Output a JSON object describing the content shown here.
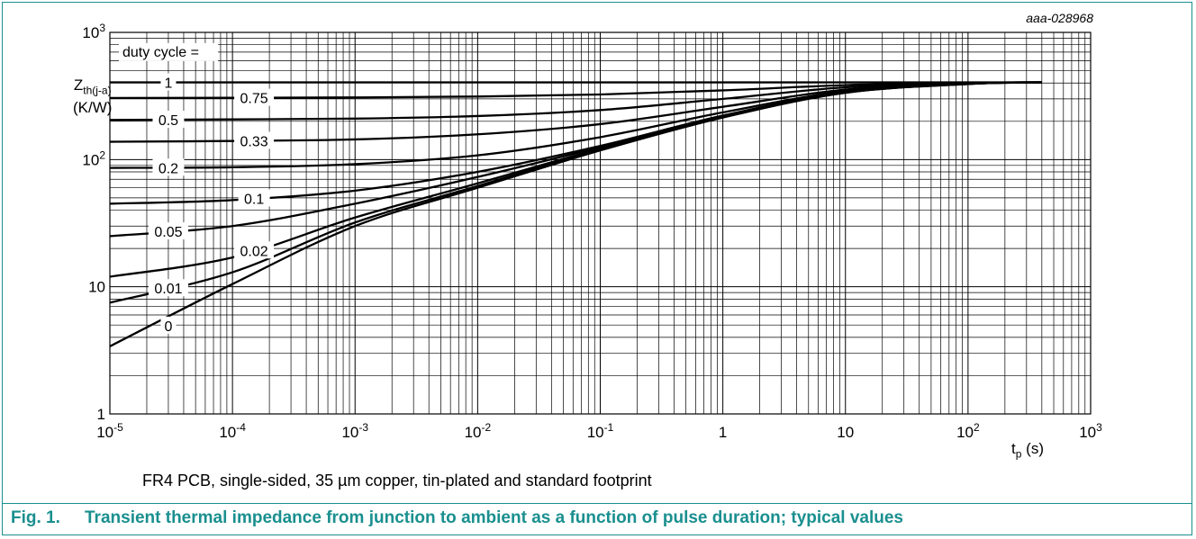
{
  "figure": {
    "code": "aaa-028968",
    "note": "FR4 PCB, single-sided, 35 µm copper, tin-plated and standard footprint",
    "caption_number": "Fig. 1.",
    "caption_text": "Transient thermal impedance from junction to ambient as a function of pulse duration; typical values",
    "y_axis": {
      "symbol": "Z",
      "subscript": "th(j-a)",
      "unit": "(K/W)"
    },
    "x_axis": {
      "symbol": "t",
      "subscript": "p",
      "unit": "(s)"
    }
  },
  "chart_data": {
    "type": "line",
    "xscale": "log",
    "yscale": "log",
    "xlim": [
      1e-05,
      1000
    ],
    "ylim": [
      1,
      1000
    ],
    "grid": true,
    "x_ticks": [
      {
        "base": "10",
        "exp": "-5"
      },
      {
        "base": "10",
        "exp": "-4"
      },
      {
        "base": "10",
        "exp": "-3"
      },
      {
        "base": "10",
        "exp": "-2"
      },
      {
        "base": "10",
        "exp": "-1"
      },
      {
        "base": "1",
        "exp": ""
      },
      {
        "base": "10",
        "exp": ""
      },
      {
        "base": "10",
        "exp": "2"
      },
      {
        "base": "10",
        "exp": "3"
      }
    ],
    "y_ticks": [
      {
        "value": 1,
        "base": "1",
        "exp": ""
      },
      {
        "value": 10,
        "base": "10",
        "exp": ""
      },
      {
        "value": 100,
        "base": "10",
        "exp": "2"
      },
      {
        "value": 1000,
        "base": "10",
        "exp": "3"
      }
    ],
    "legend_title": "duty cycle =",
    "series": [
      {
        "name": "1",
        "x": [
          1e-05,
          0.0001,
          0.001,
          0.01,
          0.1,
          1,
          10,
          100,
          400
        ],
        "y": [
          405,
          405,
          405,
          405,
          405,
          405,
          405,
          405,
          405
        ]
      },
      {
        "name": "0.75",
        "x": [
          1e-05,
          0.0001,
          0.001,
          0.01,
          0.1,
          1,
          10,
          100,
          400
        ],
        "y": [
          305,
          306,
          308,
          313,
          325,
          350,
          385,
          402,
          405
        ]
      },
      {
        "name": "0.5",
        "x": [
          1e-05,
          0.0001,
          0.001,
          0.01,
          0.1,
          1,
          10,
          100,
          400
        ],
        "y": [
          205,
          207,
          210,
          220,
          245,
          300,
          370,
          400,
          405
        ]
      },
      {
        "name": "0.33",
        "x": [
          1e-05,
          0.0001,
          0.001,
          0.01,
          0.1,
          1,
          10,
          100,
          400
        ],
        "y": [
          138,
          140,
          144,
          158,
          190,
          260,
          355,
          398,
          405
        ]
      },
      {
        "name": "0.2",
        "x": [
          1e-05,
          0.0001,
          0.001,
          0.01,
          0.1,
          1,
          10,
          100,
          400
        ],
        "y": [
          86,
          87,
          92,
          108,
          150,
          235,
          345,
          396,
          405
        ]
      },
      {
        "name": "0.1",
        "x": [
          1e-05,
          0.0001,
          0.001,
          0.01,
          0.1,
          1,
          10,
          100,
          400
        ],
        "y": [
          45,
          48,
          57,
          80,
          128,
          222,
          340,
          395,
          405
        ]
      },
      {
        "name": "0.05",
        "x": [
          1e-05,
          0.0001,
          0.001,
          0.01,
          0.1,
          1,
          10,
          100,
          400
        ],
        "y": [
          25,
          30,
          45,
          73,
          125,
          220,
          338,
          394,
          405
        ]
      },
      {
        "name": "0.02",
        "x": [
          1e-05,
          0.0001,
          0.001,
          0.01,
          0.1,
          1,
          10,
          100,
          400
        ],
        "y": [
          12,
          17,
          35,
          65,
          122,
          218,
          337,
          394,
          405
        ]
      },
      {
        "name": "0.01",
        "x": [
          1e-05,
          0.0001,
          0.001,
          0.01,
          0.1,
          1,
          10,
          100,
          400
        ],
        "y": [
          7.5,
          13,
          32,
          62,
          120,
          216,
          336,
          393,
          405
        ]
      },
      {
        "name": "0",
        "x": [
          1e-05,
          0.0001,
          0.001,
          0.01,
          0.1,
          1,
          10,
          100,
          400
        ],
        "y": [
          3.4,
          10.5,
          30,
          60,
          118,
          214,
          335,
          393,
          405
        ]
      }
    ]
  }
}
